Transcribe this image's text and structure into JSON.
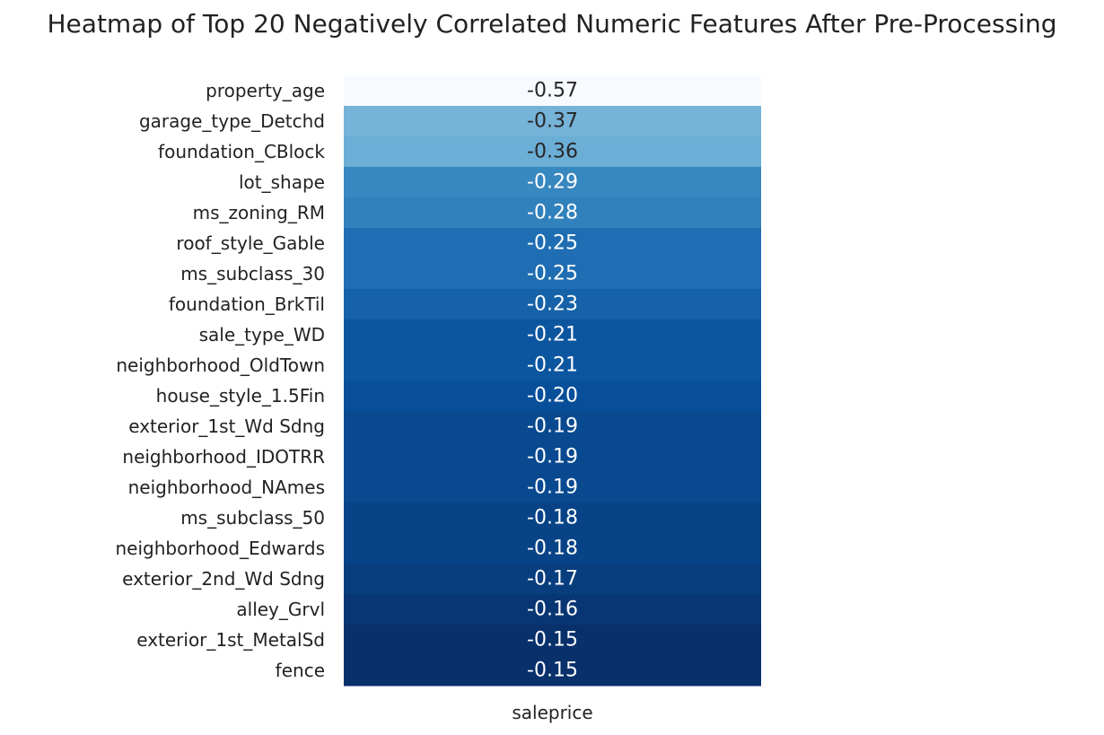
{
  "chart_data": {
    "type": "heatmap",
    "title": "Heatmap of Top 20 Negatively Correlated Numeric Features After Pre-Processing",
    "columns": [
      "saleprice"
    ],
    "rows": [
      "property_age",
      "garage_type_Detchd",
      "foundation_CBlock",
      "lot_shape",
      "ms_zoning_RM",
      "roof_style_Gable",
      "ms_subclass_30",
      "foundation_BrkTil",
      "sale_type_WD ",
      "neighborhood_OldTown",
      "house_style_1.5Fin",
      "exterior_1st_Wd Sdng",
      "neighborhood_IDOTRR",
      "neighborhood_NAmes",
      "ms_subclass_50",
      "neighborhood_Edwards",
      "exterior_2nd_Wd Sdng",
      "alley_Grvl",
      "exterior_1st_MetalSd",
      "fence"
    ],
    "values": [
      -0.57,
      -0.37,
      -0.36,
      -0.29,
      -0.28,
      -0.25,
      -0.25,
      -0.23,
      -0.21,
      -0.21,
      -0.2,
      -0.19,
      -0.19,
      -0.19,
      -0.18,
      -0.18,
      -0.17,
      -0.16,
      -0.15,
      -0.15
    ],
    "value_labels": [
      "-0.57",
      "-0.37",
      "-0.36",
      "-0.29",
      "-0.28",
      "-0.25",
      "-0.25",
      "-0.23",
      "-0.21",
      "-0.21",
      "-0.20",
      "-0.19",
      "-0.19",
      "-0.19",
      "-0.18",
      "-0.18",
      "-0.17",
      "-0.16",
      "-0.15",
      "-0.15"
    ],
    "colormap": "Blues",
    "value_range": [
      -0.57,
      -0.15
    ],
    "colorbar": false,
    "grid": false
  }
}
